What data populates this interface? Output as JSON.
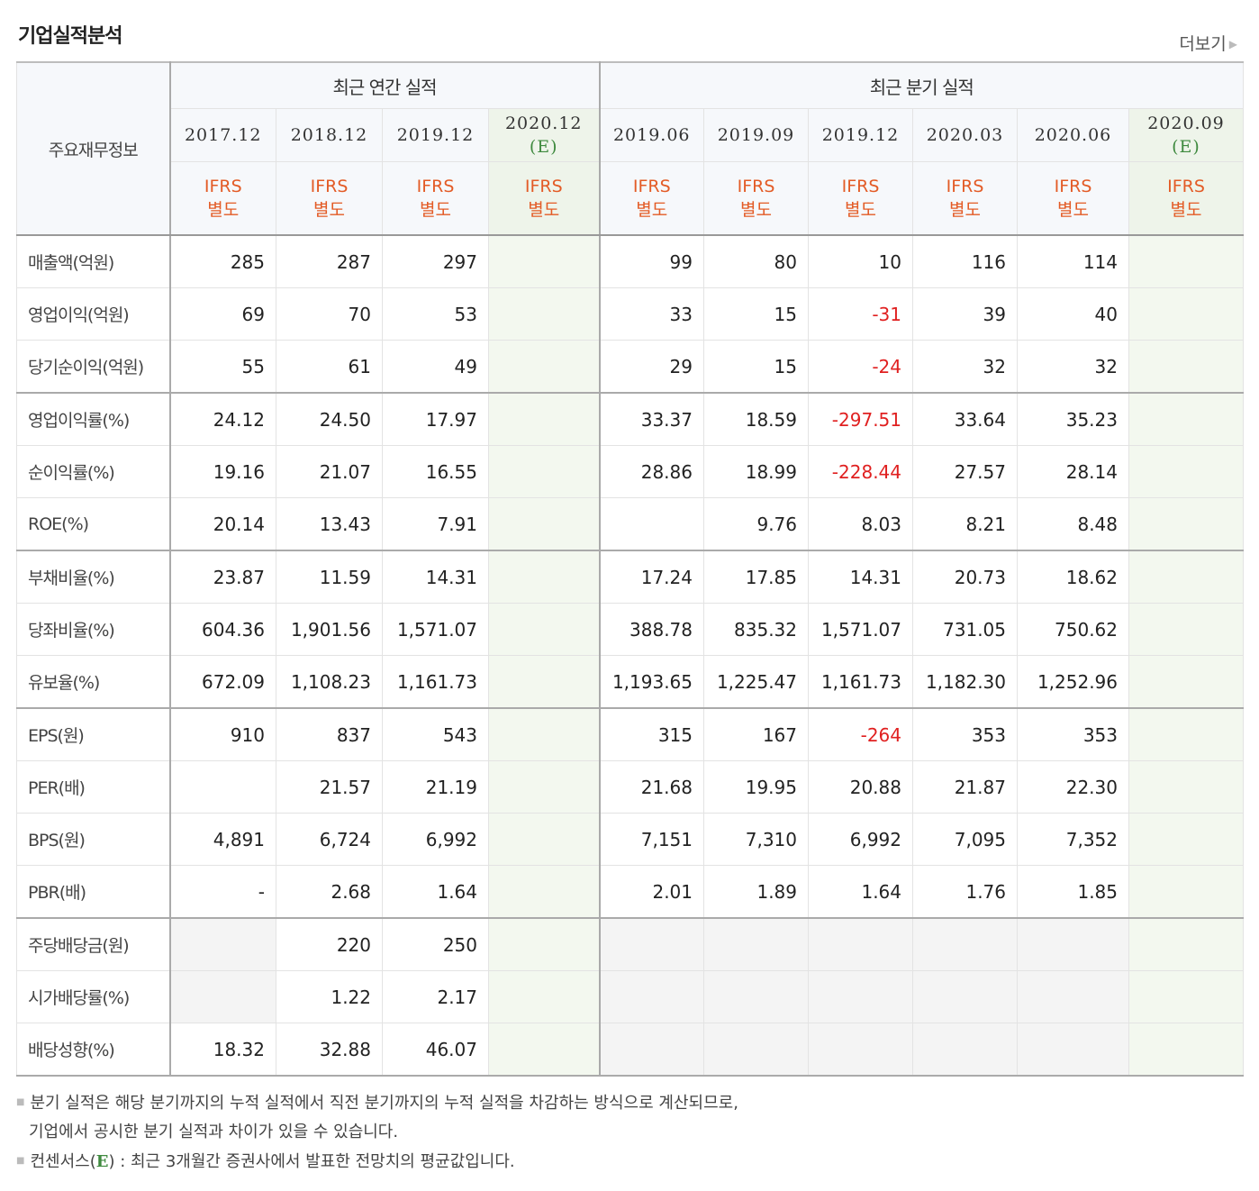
{
  "title": "기업실적분석",
  "more_label": "더보기",
  "header": {
    "row_label": "주요재무정보",
    "annual_group": "최근 연간 실적",
    "quarter_group": "최근 분기 실적",
    "estimate_mark": "(E)",
    "annual_periods": [
      "2017.12",
      "2018.12",
      "2019.12",
      "2020.12"
    ],
    "quarter_periods": [
      "2019.06",
      "2019.09",
      "2019.12",
      "2020.03",
      "2020.06",
      "2020.09"
    ],
    "ifrs_line1": "IFRS",
    "ifrs_line2": "별도"
  },
  "rows": [
    {
      "label": "매출액(억원)",
      "annual": [
        "285",
        "287",
        "297",
        ""
      ],
      "quarter": [
        "99",
        "80",
        "10",
        "116",
        "114",
        ""
      ]
    },
    {
      "label": "영업이익(억원)",
      "annual": [
        "69",
        "70",
        "53",
        ""
      ],
      "quarter": [
        "33",
        "15",
        "-31",
        "39",
        "40",
        ""
      ]
    },
    {
      "label": "당기순이익(억원)",
      "annual": [
        "55",
        "61",
        "49",
        ""
      ],
      "quarter": [
        "29",
        "15",
        "-24",
        "32",
        "32",
        ""
      ]
    },
    {
      "label": "영업이익률(%)",
      "annual": [
        "24.12",
        "24.50",
        "17.97",
        ""
      ],
      "quarter": [
        "33.37",
        "18.59",
        "-297.51",
        "33.64",
        "35.23",
        ""
      ]
    },
    {
      "label": "순이익률(%)",
      "annual": [
        "19.16",
        "21.07",
        "16.55",
        ""
      ],
      "quarter": [
        "28.86",
        "18.99",
        "-228.44",
        "27.57",
        "28.14",
        ""
      ]
    },
    {
      "label": "ROE(%)",
      "annual": [
        "20.14",
        "13.43",
        "7.91",
        ""
      ],
      "quarter": [
        "",
        "9.76",
        "8.03",
        "8.21",
        "8.48",
        ""
      ]
    },
    {
      "label": "부채비율(%)",
      "annual": [
        "23.87",
        "11.59",
        "14.31",
        ""
      ],
      "quarter": [
        "17.24",
        "17.85",
        "14.31",
        "20.73",
        "18.62",
        ""
      ]
    },
    {
      "label": "당좌비율(%)",
      "annual": [
        "604.36",
        "1,901.56",
        "1,571.07",
        ""
      ],
      "quarter": [
        "388.78",
        "835.32",
        "1,571.07",
        "731.05",
        "750.62",
        ""
      ]
    },
    {
      "label": "유보율(%)",
      "annual": [
        "672.09",
        "1,108.23",
        "1,161.73",
        ""
      ],
      "quarter": [
        "1,193.65",
        "1,225.47",
        "1,161.73",
        "1,182.30",
        "1,252.96",
        ""
      ]
    },
    {
      "label": "EPS(원)",
      "annual": [
        "910",
        "837",
        "543",
        ""
      ],
      "quarter": [
        "315",
        "167",
        "-264",
        "353",
        "353",
        ""
      ]
    },
    {
      "label": "PER(배)",
      "annual": [
        "",
        "21.57",
        "21.19",
        ""
      ],
      "quarter": [
        "21.68",
        "19.95",
        "20.88",
        "21.87",
        "22.30",
        ""
      ]
    },
    {
      "label": "BPS(원)",
      "annual": [
        "4,891",
        "6,724",
        "6,992",
        ""
      ],
      "quarter": [
        "7,151",
        "7,310",
        "6,992",
        "7,095",
        "7,352",
        ""
      ]
    },
    {
      "label": "PBR(배)",
      "annual": [
        "-",
        "2.68",
        "1.64",
        ""
      ],
      "quarter": [
        "2.01",
        "1.89",
        "1.64",
        "1.76",
        "1.85",
        ""
      ]
    },
    {
      "label": "주당배당금(원)",
      "annual": [
        "",
        "220",
        "250",
        ""
      ],
      "quarter": [
        "",
        "",
        "",
        "",
        "",
        ""
      ]
    },
    {
      "label": "시가배당률(%)",
      "annual": [
        "",
        "1.22",
        "2.17",
        ""
      ],
      "quarter": [
        "",
        "",
        "",
        "",
        "",
        ""
      ]
    },
    {
      "label": "배당성향(%)",
      "annual": [
        "18.32",
        "32.88",
        "46.07",
        ""
      ],
      "quarter": [
        "",
        "",
        "",
        "",
        "",
        ""
      ]
    }
  ],
  "notes": {
    "line1": "분기 실적은 해당 분기까지의 누적 실적에서 직전 분기까지의 누적 실적을 차감하는 방식으로 계산되므로,",
    "line2": "기업에서 공시한 분기 실적과 차이가 있을 수 있습니다.",
    "line3_prefix": "컨센서스(",
    "line3_e": "E",
    "line3_suffix": ") : 최근 3개월간 증권사에서 발표한 전망치의 평균값입니다."
  }
}
